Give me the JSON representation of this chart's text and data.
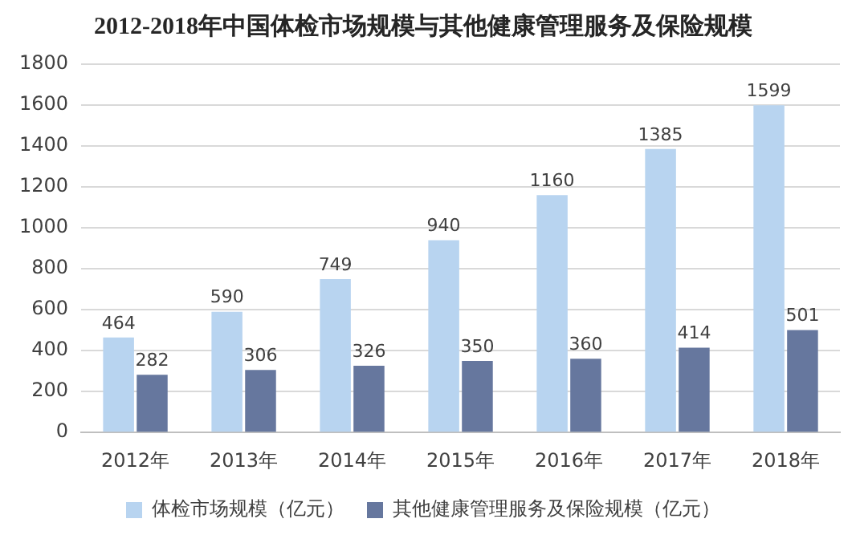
{
  "chart_data": {
    "type": "bar",
    "title": "2012-2018年中国体检市场规模与其他健康管理服务及保险规模",
    "categories": [
      "2012年",
      "2013年",
      "2014年",
      "2015年",
      "2016年",
      "2017年",
      "2018年"
    ],
    "series": [
      {
        "name": "体检市场规模（亿元）",
        "color": "#b8d4f0",
        "values": [
          464,
          590,
          749,
          940,
          1160,
          1385,
          1599
        ]
      },
      {
        "name": "其他健康管理服务及保险规模（亿元）",
        "color": "#66779e",
        "values": [
          282,
          306,
          326,
          350,
          360,
          414,
          501
        ]
      }
    ],
    "ylim": [
      0,
      1800
    ],
    "yticks": [
      0,
      200,
      400,
      600,
      800,
      1000,
      1200,
      1400,
      1600,
      1800
    ],
    "grid": "y",
    "legend": "bottom",
    "data_labels": true
  }
}
